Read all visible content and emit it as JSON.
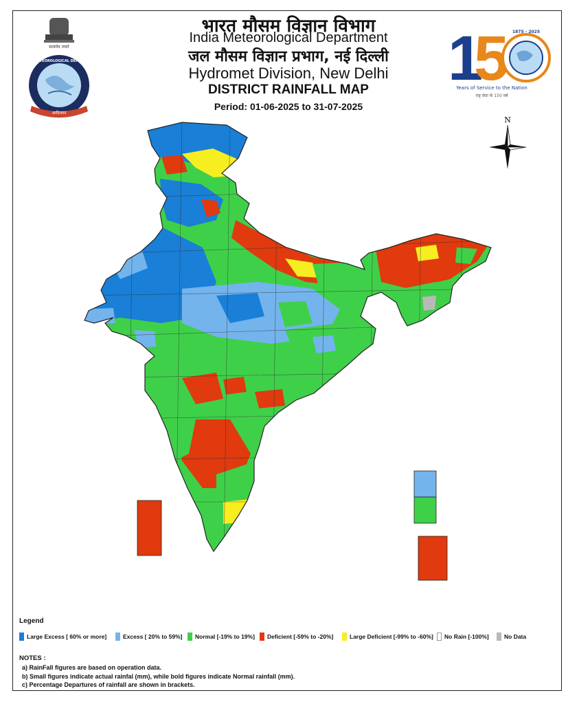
{
  "header": {
    "hindi_org": "भारत  मौसम विज्ञान विभाग",
    "org": "India Meteorological Department",
    "hindi_division": "जल  मौसम विज्ञान प्रभाग, नई दिल्ली",
    "division": "Hydromet Division, New Delhi",
    "title": "DISTRICT RAINFALL MAP",
    "period": "Period: 01-06-2025 to 31-07-2025"
  },
  "logo_left": {
    "name": "imd-emblem",
    "top_text": "सत्यमेव जयते",
    "ring_text": "INDIA METEOROLOGICAL DEPARTMENT",
    "hindi_banner": "भारत मौसम विज्ञान विभाग",
    "motto": "आदित्यात"
  },
  "logo_right": {
    "name": "imd-150-years-logo",
    "number_one": "1",
    "number_rest": "50",
    "years_range": "1875 - 2025",
    "tagline": "Years of Service to the Nation",
    "hindi_tagline": "राष्ट्र सेवा के 150 वर्ष"
  },
  "north_arrow": {
    "label": "N"
  },
  "map": {
    "region": "India",
    "colors": {
      "large_excess": "#1a7fd6",
      "excess": "#74b4ec",
      "normal": "#3fd04a",
      "deficient": "#e03a0e",
      "large_deficient": "#f6ee20",
      "no_rain": "#ffffff",
      "no_data": "#b9b9b9"
    }
  },
  "legend": {
    "title": "Legend",
    "items": [
      {
        "label": "Large Excess [ 60% or more]",
        "color": "#1a7fd6"
      },
      {
        "label": "Excess [ 20% to 59%]",
        "color": "#74b4ec"
      },
      {
        "label": "Normal [-19% to 19%]",
        "color": "#3fd04a"
      },
      {
        "label": "Deficient [-59% to -20%]",
        "color": "#e03a0e"
      },
      {
        "label": "Large Deficient [-99% to -60%]",
        "color": "#f6ee20"
      },
      {
        "label": "No Rain  [-100%]",
        "color": "#ffffff"
      },
      {
        "label": "No Data",
        "color": "#b9b9b9"
      }
    ]
  },
  "notes": {
    "title": "NOTES :",
    "items": [
      "a) RainFall figures are based on operation data.",
      "b) Small figures indicate actual rainfal (mm), while bold figures indicate Normal rainfall (mm).",
      "c) Percentage Departures of rainfall are shown in brackets."
    ]
  }
}
